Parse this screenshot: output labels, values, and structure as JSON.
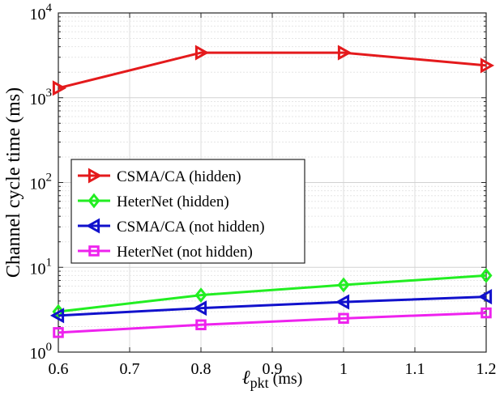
{
  "chart_data": {
    "type": "line",
    "scale": "log-y",
    "xlabel": {
      "main": "ℓ",
      "sub": "pkt",
      "unit": " (ms)"
    },
    "ylabel": "Channel cycle time (ms)",
    "xlim": [
      0.6,
      1.2
    ],
    "ylim": [
      1,
      10000
    ],
    "xticks": [
      {
        "value": 0.6,
        "label": "0.6"
      },
      {
        "value": 0.7,
        "label": "0.7"
      },
      {
        "value": 0.8,
        "label": "0.8"
      },
      {
        "value": 0.9,
        "label": "0.9"
      },
      {
        "value": 1.0,
        "label": "1"
      },
      {
        "value": 1.1,
        "label": "1.1"
      },
      {
        "value": 1.2,
        "label": "1.2"
      }
    ],
    "yticks": [
      {
        "value": 1,
        "base": "10",
        "exp": "0"
      },
      {
        "value": 10,
        "base": "10",
        "exp": "1"
      },
      {
        "value": 100,
        "base": "10",
        "exp": "2"
      },
      {
        "value": 1000,
        "base": "10",
        "exp": "3"
      },
      {
        "value": 10000,
        "base": "10",
        "exp": "4"
      }
    ],
    "grid": true,
    "legend_position": "left",
    "x": [
      0.6,
      0.8,
      1.0,
      1.2
    ],
    "series": [
      {
        "name": "CSMA/CA (hidden)",
        "color": "#e41a1c",
        "marker": "triangle-right",
        "values": [
          1300,
          3400,
          3400,
          2400
        ]
      },
      {
        "name": "HeterNet (hidden)",
        "color": "#22ee22",
        "marker": "diamond",
        "values": [
          3.0,
          4.7,
          6.2,
          8.0
        ]
      },
      {
        "name": "CSMA/CA (not hidden)",
        "color": "#1111cc",
        "marker": "triangle-left",
        "values": [
          2.7,
          3.3,
          3.9,
          4.5
        ]
      },
      {
        "name": "HeterNet (not hidden)",
        "color": "#ee22ee",
        "marker": "square",
        "values": [
          1.7,
          2.1,
          2.5,
          2.9
        ]
      }
    ]
  }
}
